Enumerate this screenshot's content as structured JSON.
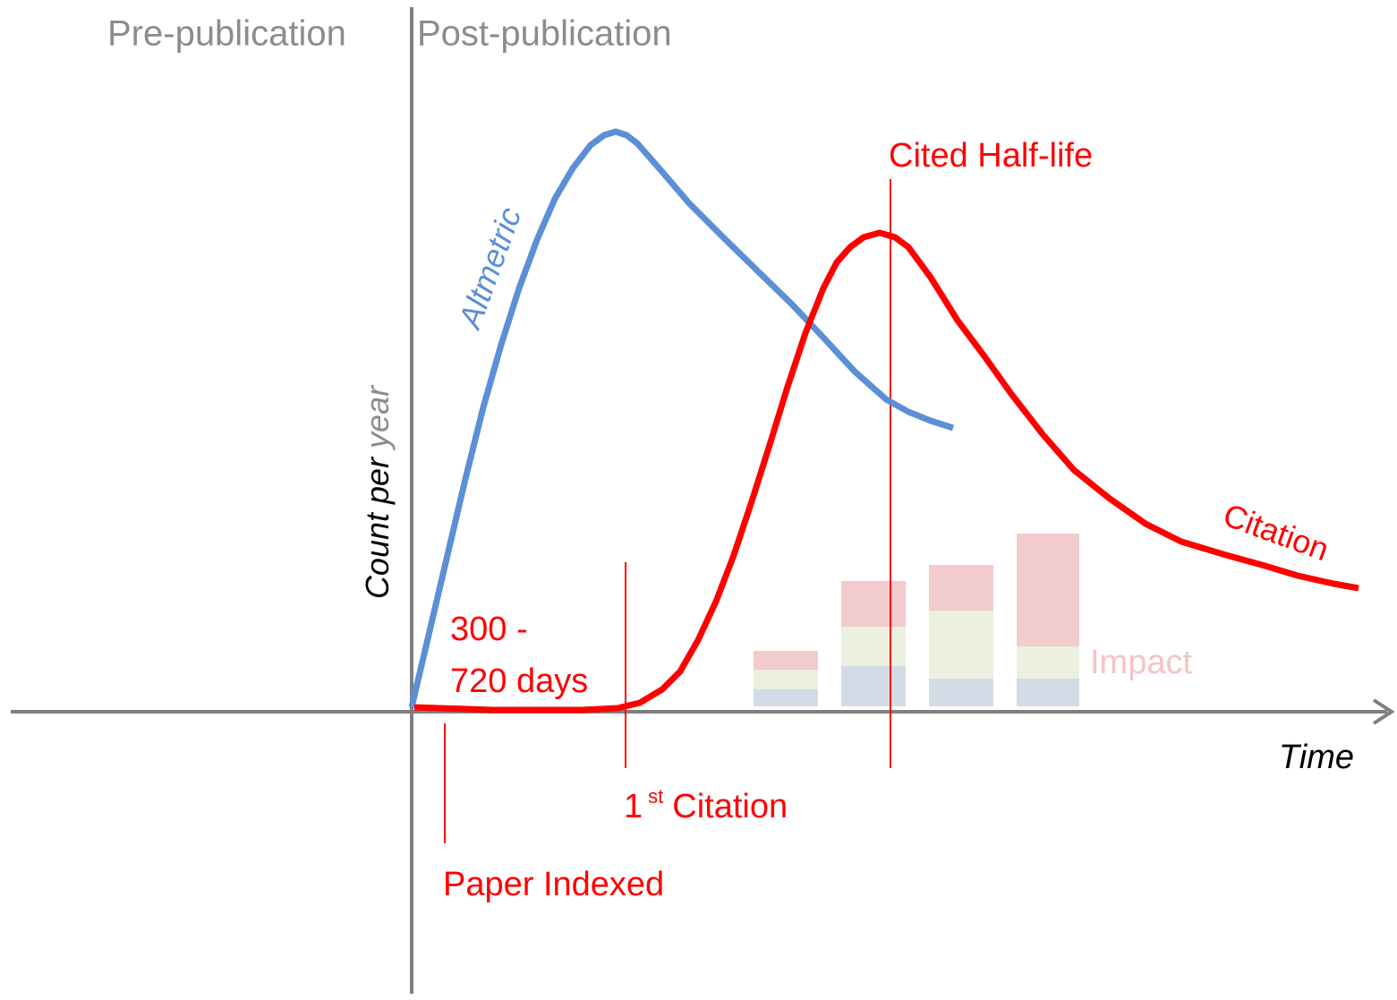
{
  "header": {
    "left": "Pre-publication",
    "right": "Post-publication"
  },
  "y_axis": {
    "label_main": "Count per",
    "label_unit": "year"
  },
  "x_axis": {
    "label": "Time"
  },
  "curves": {
    "altmetric": "Altmetric",
    "citation": "Citation"
  },
  "annotations": {
    "cited_half_life": "Cited Half-life",
    "delay_line1": "300 -",
    "delay_line2": "720 days",
    "first_citation_number": "1",
    "first_citation_suffix": "st",
    "first_citation_text": "Citation",
    "paper_indexed": "Paper Indexed",
    "impact": "Impact"
  }
}
